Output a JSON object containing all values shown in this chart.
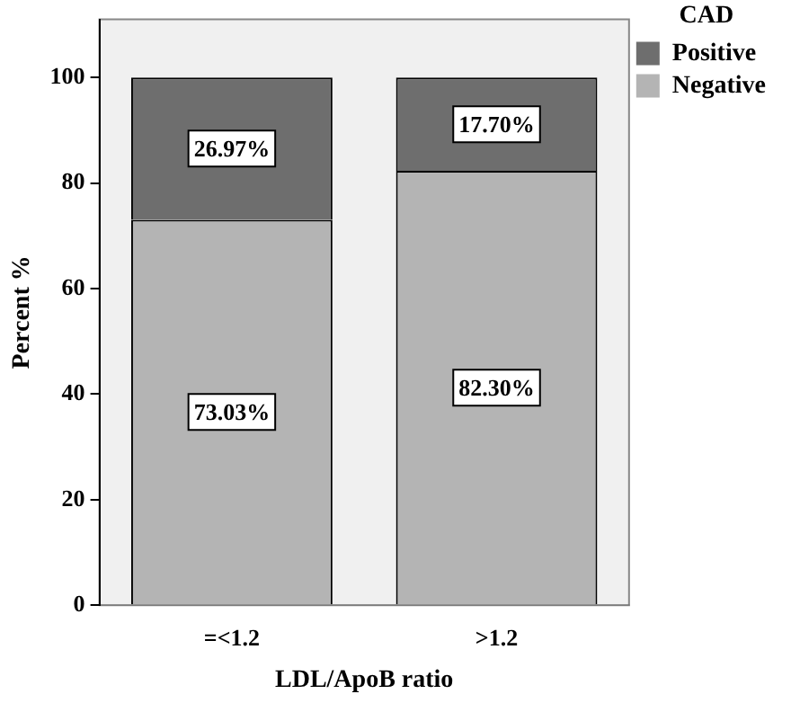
{
  "chart_data": {
    "type": "bar",
    "stacked": true,
    "xlabel": "LDL/ApoB ratio",
    "ylabel": "Percent %",
    "legend_title": "CAD",
    "legend": "top right",
    "categories": [
      "=<1.2",
      ">1.2"
    ],
    "series": [
      {
        "name": "Negative",
        "color": "#b4b4b4",
        "values": [
          73.03,
          82.3
        ],
        "value_labels": [
          "73.03%",
          "82.30%"
        ]
      },
      {
        "name": "Positive",
        "color": "#6e6e6e",
        "values": [
          26.97,
          17.7
        ],
        "value_labels": [
          "26.97%",
          "17.70%"
        ]
      }
    ],
    "ylim": [
      0,
      111
    ],
    "yticks": [
      0,
      20,
      40,
      60,
      80,
      100
    ],
    "grid": false
  }
}
